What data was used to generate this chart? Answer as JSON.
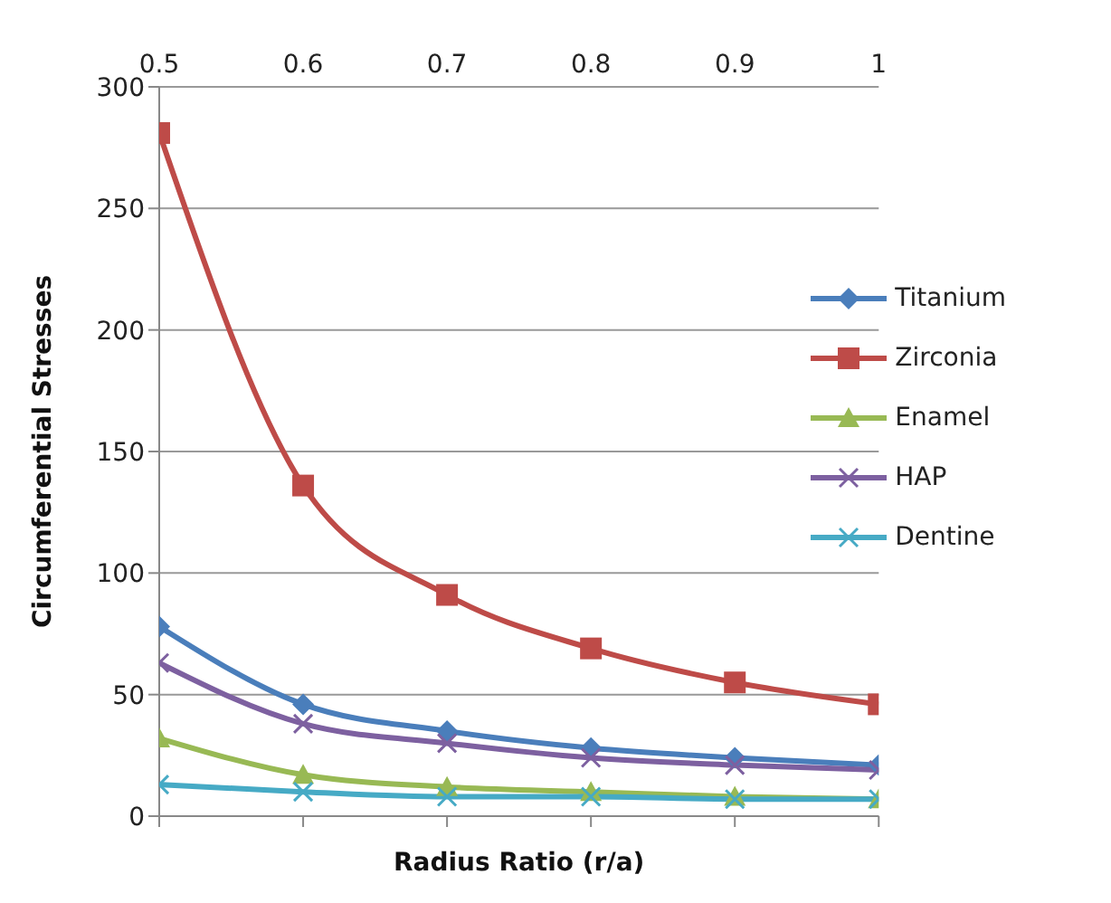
{
  "chart_data": {
    "type": "line",
    "xlabel": "Radius Ratio (r/a)",
    "ylabel": "Circumferential Stresses",
    "x": [
      0.5,
      0.6,
      0.7,
      0.8,
      0.9,
      1
    ],
    "xlim": [
      0.5,
      1
    ],
    "xticks": [
      0.5,
      0.6,
      0.7,
      0.8,
      0.9,
      1
    ],
    "ylim": [
      0,
      300
    ],
    "yticks": [
      0,
      50,
      100,
      150,
      200,
      250,
      300
    ],
    "grid": "y",
    "legend": "right",
    "series": [
      {
        "name": "Titanium",
        "color": "#4a7ebb",
        "marker": "diamond",
        "values": [
          78,
          46,
          35,
          28,
          24,
          21
        ]
      },
      {
        "name": "Zirconia",
        "color": "#be4b48",
        "marker": "square",
        "values": [
          281,
          136,
          91,
          69,
          55,
          46
        ]
      },
      {
        "name": "Enamel",
        "color": "#98b954",
        "marker": "triangle",
        "values": [
          32,
          17,
          12,
          10,
          8,
          7
        ]
      },
      {
        "name": "HAP",
        "color": "#7d60a0",
        "marker": "cross",
        "values": [
          63,
          38,
          30,
          24,
          21,
          19
        ]
      },
      {
        "name": "Dentine",
        "color": "#46aac5",
        "marker": "cross",
        "values": [
          13,
          10,
          8,
          8,
          7,
          7
        ]
      }
    ]
  }
}
